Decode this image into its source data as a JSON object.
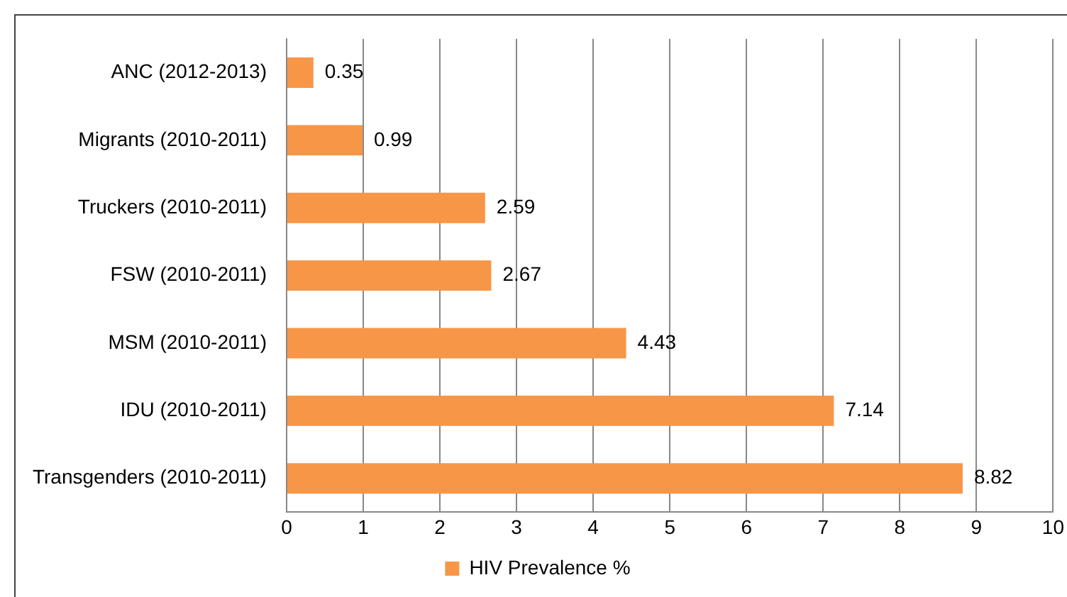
{
  "chart_data": {
    "type": "bar",
    "orientation": "horizontal",
    "categories": [
      "ANC (2012-2013)",
      "Migrants (2010-2011)",
      "Truckers (2010-2011)",
      "FSW (2010-2011)",
      "MSM (2010-2011)",
      "IDU (2010-2011)",
      "Transgenders (2010-2011)"
    ],
    "series": [
      {
        "name": "HIV Prevalence %",
        "color": "#f79646",
        "values": [
          0.35,
          0.99,
          2.59,
          2.67,
          4.43,
          7.14,
          8.82
        ]
      }
    ],
    "xlim": [
      0,
      10
    ],
    "xticks": [
      0,
      1,
      2,
      3,
      4,
      5,
      6,
      7,
      8,
      9,
      10
    ],
    "grid": "x",
    "legend": "bottom",
    "data_labels": true
  }
}
